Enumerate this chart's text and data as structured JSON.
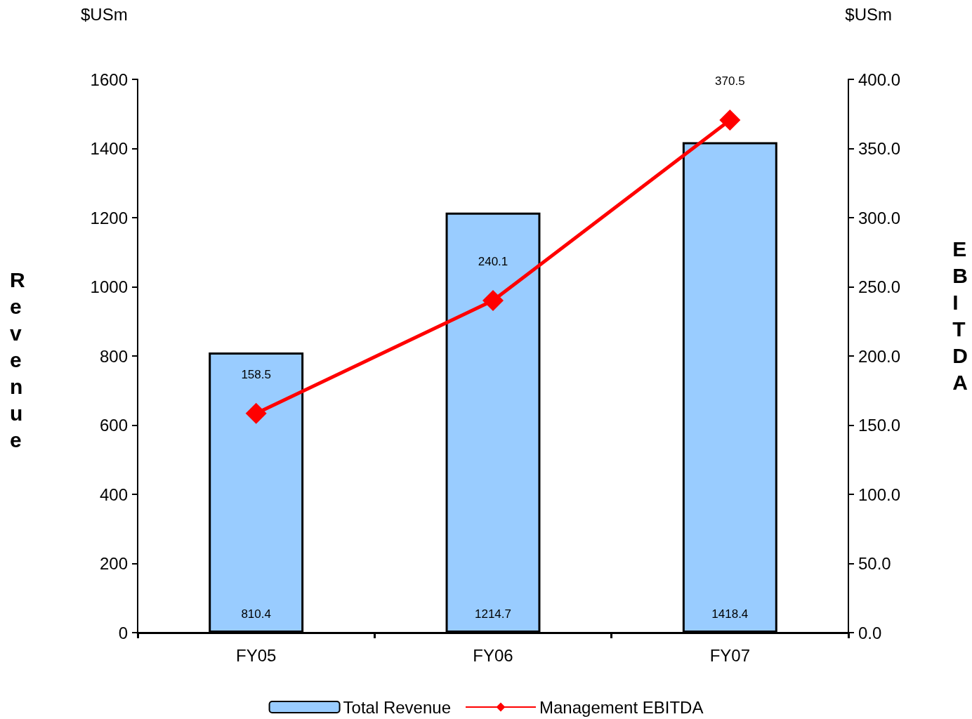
{
  "chart_data": {
    "type": "bar",
    "ylabel": "Revenue",
    "y2label": "EBITDA",
    "annotations": [
      "$USm",
      "$USm"
    ],
    "categories": [
      "FY05",
      "FY06",
      "FY07"
    ],
    "series": [
      {
        "name": "Total Revenue",
        "color": "#99ccff",
        "values": [
          810.4,
          1214.7,
          1418.4
        ]
      },
      {
        "name": "Management EBITDA",
        "type": "line",
        "axis": "y2",
        "color": "#ff0000",
        "marker": "diamond",
        "values": [
          158.5,
          240.1,
          370.5
        ]
      }
    ],
    "ylim": [
      0,
      1600
    ],
    "yticks": [
      0,
      200,
      400,
      600,
      800,
      1000,
      1200,
      1400,
      1600
    ],
    "y2lim": [
      0,
      400
    ],
    "y2ticks": [
      {
        "value": 0,
        "label": "0.0"
      },
      {
        "value": 50,
        "label": "50.0"
      },
      {
        "value": 100,
        "label": "100.0"
      },
      {
        "value": 150,
        "label": "150.0"
      },
      {
        "value": 200,
        "label": "200.0"
      },
      {
        "value": 250,
        "label": "250.0"
      },
      {
        "value": 300,
        "label": "300.0"
      },
      {
        "value": 350,
        "label": "350.0"
      },
      {
        "value": 400,
        "label": "400.0"
      }
    ],
    "data_labels": true,
    "legend": "bottom",
    "grid": false
  }
}
